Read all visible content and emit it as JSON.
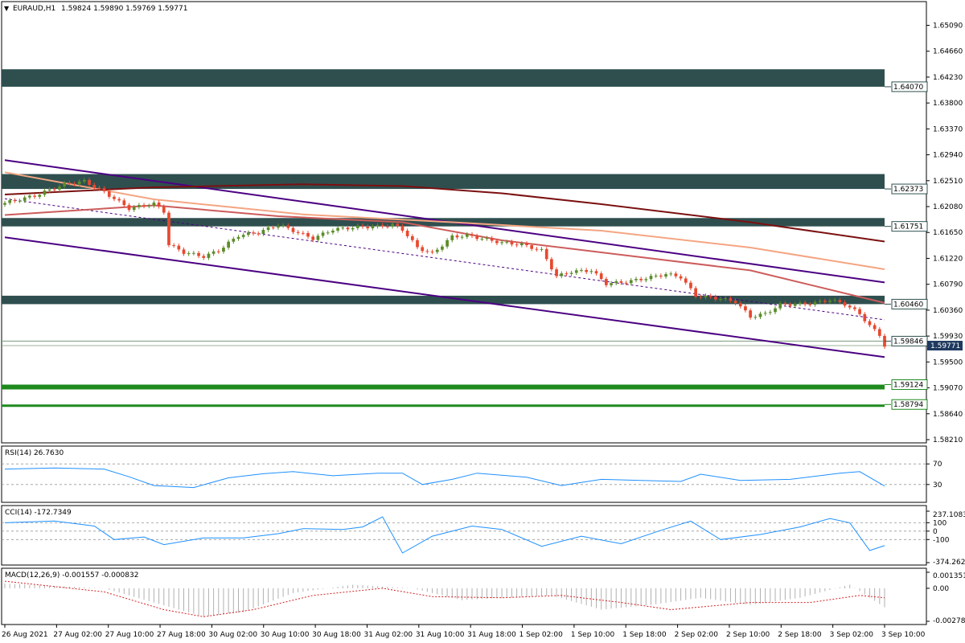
{
  "header": {
    "symbol_label": "EURAUD,H1",
    "ohlc": "1.59824 1.59890 1.59769 1.59771"
  },
  "colors": {
    "zone_dark": "#2f4f4f",
    "zone_green": "#1e8a1e",
    "channel": "#4b0082",
    "ma_fast": "#f4a582",
    "ma_mid": "#cd5c5c",
    "ma_slow": "#7b1010",
    "bull": "#5b8c2a",
    "bear": "#e8482e",
    "indicator_line": "#1e90ff",
    "macd_signal": "#d42020",
    "macd_hist": "#b0b0b0"
  },
  "chart_data": [
    {
      "type": "candlestick",
      "title": "EURAUD,H1",
      "ylim": [
        1.5821,
        1.6527
      ],
      "y_ticks": [
        "1.65090",
        "1.64660",
        "1.64230",
        "1.63800",
        "1.63370",
        "1.62940",
        "1.62510",
        "1.62080",
        "1.61650",
        "1.61220",
        "1.60790",
        "1.60360",
        "1.59930",
        "1.59500",
        "1.59070",
        "1.58640",
        "1.58210"
      ],
      "x_ticks": [
        "26 Aug 2021",
        "27 Aug 02:00",
        "27 Aug 10:00",
        "27 Aug 18:00",
        "30 Aug 02:00",
        "30 Aug 10:00",
        "30 Aug 18:00",
        "31 Aug 02:00",
        "31 Aug 10:00",
        "31 Aug 18:00",
        "1 Sep 02:00",
        "1 Sep 10:00",
        "1 Sep 18:00",
        "2 Sep 02:00",
        "2 Sep 10:00",
        "2 Sep 18:00",
        "3 Sep 02:00",
        "3 Sep 10:00"
      ],
      "close_path": [
        [
          0,
          1.6214
        ],
        [
          6,
          1.6226
        ],
        [
          12,
          1.6245
        ],
        [
          16,
          1.625
        ],
        [
          20,
          1.6232
        ],
        [
          25,
          1.6205
        ],
        [
          30,
          1.6213
        ],
        [
          32,
          1.62
        ],
        [
          33,
          1.6145
        ],
        [
          36,
          1.6132
        ],
        [
          40,
          1.6125
        ],
        [
          43,
          1.6135
        ],
        [
          47,
          1.616
        ],
        [
          51,
          1.6165
        ],
        [
          55,
          1.6178
        ],
        [
          58,
          1.6168
        ],
        [
          62,
          1.6155
        ],
        [
          66,
          1.617
        ],
        [
          71,
          1.6174
        ],
        [
          75,
          1.6175
        ],
        [
          78,
          1.6178
        ],
        [
          80,
          1.617
        ],
        [
          83,
          1.614
        ],
        [
          86,
          1.613
        ],
        [
          90,
          1.6158
        ],
        [
          93,
          1.616
        ],
        [
          96,
          1.6155
        ],
        [
          100,
          1.6148
        ],
        [
          104,
          1.6145
        ],
        [
          108,
          1.6135
        ],
        [
          111,
          1.6092
        ],
        [
          114,
          1.61
        ],
        [
          118,
          1.6102
        ],
        [
          121,
          1.608
        ],
        [
          125,
          1.6083
        ],
        [
          129,
          1.6089
        ],
        [
          133,
          1.6096
        ],
        [
          136,
          1.6091
        ],
        [
          139,
          1.606
        ],
        [
          144,
          1.6055
        ],
        [
          147,
          1.605
        ],
        [
          150,
          1.6025
        ],
        [
          153,
          1.603
        ],
        [
          156,
          1.6045
        ],
        [
          160,
          1.6046
        ],
        [
          163,
          1.6048
        ],
        [
          166,
          1.6053
        ],
        [
          169,
          1.6046
        ],
        [
          172,
          1.603
        ],
        [
          174,
          1.601
        ],
        [
          176,
          1.5995
        ],
        [
          177,
          1.5977
        ]
      ],
      "levels": [
        {
          "label": "1.64070",
          "value": 1.6407,
          "band": [
            1.6407,
            1.6436
          ],
          "kind": "dark"
        },
        {
          "label": "1.62373",
          "value": 1.62373,
          "band": [
            1.62373,
            1.6262
          ],
          "kind": "dark"
        },
        {
          "label": "1.61751",
          "value": 1.61751,
          "band": [
            1.61751,
            1.6189
          ],
          "kind": "dark"
        },
        {
          "label": "1.60460",
          "value": 1.6046,
          "band": [
            1.6046,
            1.606
          ],
          "kind": "dark"
        },
        {
          "label": "1.59846",
          "value": 1.59846,
          "band": null,
          "kind": "line"
        },
        {
          "label": "1.59124",
          "value": 1.59124,
          "band": [
            1.59044,
            1.59124
          ],
          "kind": "green"
        },
        {
          "label": "1.58794",
          "value": 1.58794,
          "band": [
            1.58754,
            1.58794
          ],
          "kind": "green"
        }
      ],
      "current_price": {
        "label": "1.59771",
        "value": 1.59771
      },
      "channel": {
        "upper": [
          [
            0,
            1.6285
          ],
          [
            177,
            1.6082
          ]
        ],
        "lower": [
          [
            0,
            1.6157
          ],
          [
            177,
            1.5958
          ]
        ],
        "mid": [
          [
            0,
            1.6221
          ],
          [
            177,
            1.602
          ]
        ]
      },
      "moving_averages": [
        {
          "color_key": "ma_fast",
          "points": [
            [
              0,
              1.6265
            ],
            [
              30,
              1.622
            ],
            [
              60,
              1.6195
            ],
            [
              90,
              1.6182
            ],
            [
              120,
              1.6168
            ],
            [
              150,
              1.614
            ],
            [
              177,
              1.6104
            ]
          ]
        },
        {
          "color_key": "ma_mid",
          "points": [
            [
              0,
              1.6194
            ],
            [
              30,
              1.621
            ],
            [
              55,
              1.6192
            ],
            [
              80,
              1.6182
            ],
            [
              100,
              1.6152
            ],
            [
              120,
              1.6132
            ],
            [
              150,
              1.6102
            ],
            [
              177,
              1.6048
            ]
          ]
        },
        {
          "color_key": "ma_slow",
          "points": [
            [
              0,
              1.6228
            ],
            [
              30,
              1.624
            ],
            [
              60,
              1.6245
            ],
            [
              80,
              1.6242
            ],
            [
              100,
              1.623
            ],
            [
              120,
              1.6212
            ],
            [
              150,
              1.6182
            ],
            [
              177,
              1.615
            ]
          ]
        }
      ]
    },
    {
      "type": "line",
      "title": "RSI(14) 26.7630",
      "ylim": [
        0,
        100
      ],
      "y_ticks": [
        "70",
        "30"
      ],
      "levels": [
        70,
        30
      ],
      "values": [
        [
          0,
          60
        ],
        [
          10,
          62
        ],
        [
          20,
          60
        ],
        [
          25,
          45
        ],
        [
          30,
          28
        ],
        [
          38,
          24
        ],
        [
          45,
          43
        ],
        [
          52,
          51
        ],
        [
          58,
          55
        ],
        [
          66,
          47
        ],
        [
          75,
          52
        ],
        [
          80,
          52
        ],
        [
          84,
          30
        ],
        [
          90,
          40
        ],
        [
          95,
          52
        ],
        [
          105,
          44
        ],
        [
          112,
          28
        ],
        [
          120,
          40
        ],
        [
          128,
          38
        ],
        [
          136,
          36
        ],
        [
          140,
          50
        ],
        [
          148,
          38
        ],
        [
          158,
          40
        ],
        [
          168,
          52
        ],
        [
          172,
          55
        ],
        [
          177,
          27
        ]
      ]
    },
    {
      "type": "line",
      "title": "CCI(14) -172.7349",
      "ylim": [
        -374.2625,
        237.1083
      ],
      "y_ticks": [
        "237.1083",
        "100",
        "0",
        "-100",
        "-374.2625"
      ],
      "levels": [
        100,
        0,
        -100
      ],
      "values": [
        [
          0,
          100
        ],
        [
          10,
          120
        ],
        [
          18,
          60
        ],
        [
          22,
          -100
        ],
        [
          28,
          -70
        ],
        [
          32,
          -160
        ],
        [
          40,
          -80
        ],
        [
          48,
          -80
        ],
        [
          55,
          -30
        ],
        [
          60,
          30
        ],
        [
          68,
          20
        ],
        [
          72,
          50
        ],
        [
          76,
          170
        ],
        [
          80,
          -260
        ],
        [
          86,
          -60
        ],
        [
          94,
          60
        ],
        [
          100,
          20
        ],
        [
          108,
          -180
        ],
        [
          116,
          -60
        ],
        [
          124,
          -150
        ],
        [
          132,
          10
        ],
        [
          138,
          120
        ],
        [
          144,
          -100
        ],
        [
          152,
          -40
        ],
        [
          160,
          50
        ],
        [
          166,
          150
        ],
        [
          170,
          100
        ],
        [
          174,
          -230
        ],
        [
          177,
          -173
        ]
      ]
    },
    {
      "type": "bar",
      "title": "MACD(12,26,9) -0.001557 -0.000832",
      "ylim": [
        -0.002784,
        0.001351
      ],
      "y_ticks": [
        "0.001351",
        "0.00",
        "-0.002784"
      ],
      "histogram": [
        [
          0,
          0.0004
        ],
        [
          20,
          0.0
        ],
        [
          30,
          -0.0012
        ],
        [
          40,
          -0.0024
        ],
        [
          48,
          -0.002
        ],
        [
          58,
          -0.0004
        ],
        [
          70,
          0.0003
        ],
        [
          82,
          0.0
        ],
        [
          92,
          -0.001
        ],
        [
          100,
          -0.0008
        ],
        [
          110,
          -0.0006
        ],
        [
          120,
          -0.0018
        ],
        [
          130,
          -0.0014
        ],
        [
          140,
          -0.0008
        ],
        [
          150,
          -0.0014
        ],
        [
          160,
          -0.0008
        ],
        [
          170,
          0.0003
        ],
        [
          177,
          -0.0016
        ]
      ],
      "signal": [
        [
          0,
          0.0006
        ],
        [
          20,
          -0.0003
        ],
        [
          32,
          -0.0018
        ],
        [
          40,
          -0.0024
        ],
        [
          50,
          -0.0018
        ],
        [
          62,
          -0.0006
        ],
        [
          76,
          0.0
        ],
        [
          86,
          -0.0007
        ],
        [
          100,
          -0.0008
        ],
        [
          112,
          -0.0006
        ],
        [
          124,
          -0.0012
        ],
        [
          134,
          -0.0018
        ],
        [
          150,
          -0.0012
        ],
        [
          162,
          -0.0012
        ],
        [
          172,
          -0.0006
        ],
        [
          177,
          -0.0008
        ]
      ]
    }
  ]
}
